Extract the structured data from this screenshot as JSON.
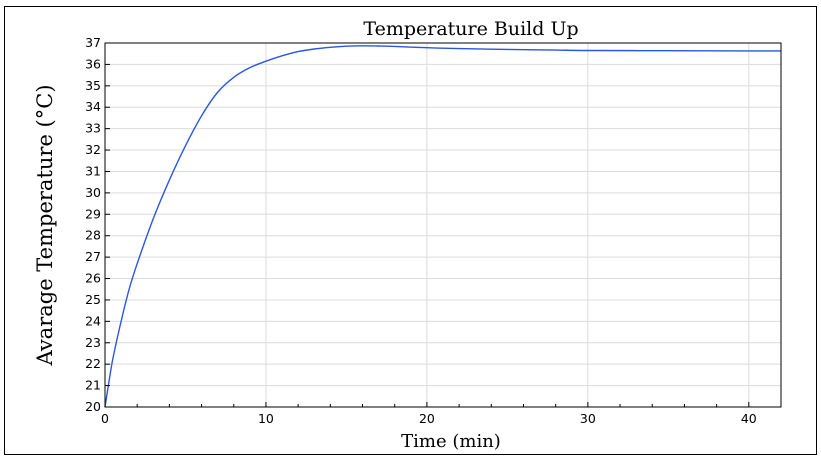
{
  "chart_data": {
    "type": "line",
    "title": "Temperature Build Up",
    "xlabel": "Time (min)",
    "ylabel": "Avarage Temperature (°C)",
    "xlim": [
      0,
      42
    ],
    "ylim": [
      20,
      37
    ],
    "xticks": [
      0,
      10,
      20,
      30,
      40
    ],
    "yticks": [
      20,
      21,
      22,
      23,
      24,
      25,
      26,
      27,
      28,
      29,
      30,
      31,
      32,
      33,
      34,
      35,
      36,
      37
    ],
    "grid": true,
    "series": [
      {
        "color": "#2a56e0",
        "x": [
          0,
          0.25,
          0.5,
          1,
          1.5,
          2,
          3,
          4,
          5,
          6,
          7,
          8,
          9,
          10,
          11,
          12,
          13,
          14,
          15,
          16,
          17,
          18,
          20,
          22,
          25,
          28,
          30,
          35,
          40,
          42
        ],
        "y": [
          20.0,
          21.2,
          22.3,
          24.0,
          25.5,
          26.7,
          28.8,
          30.6,
          32.2,
          33.6,
          34.7,
          35.4,
          35.85,
          36.15,
          36.4,
          36.6,
          36.72,
          36.8,
          36.85,
          36.87,
          36.86,
          36.84,
          36.78,
          36.74,
          36.7,
          36.67,
          36.65,
          36.64,
          36.63,
          36.63
        ]
      }
    ]
  }
}
